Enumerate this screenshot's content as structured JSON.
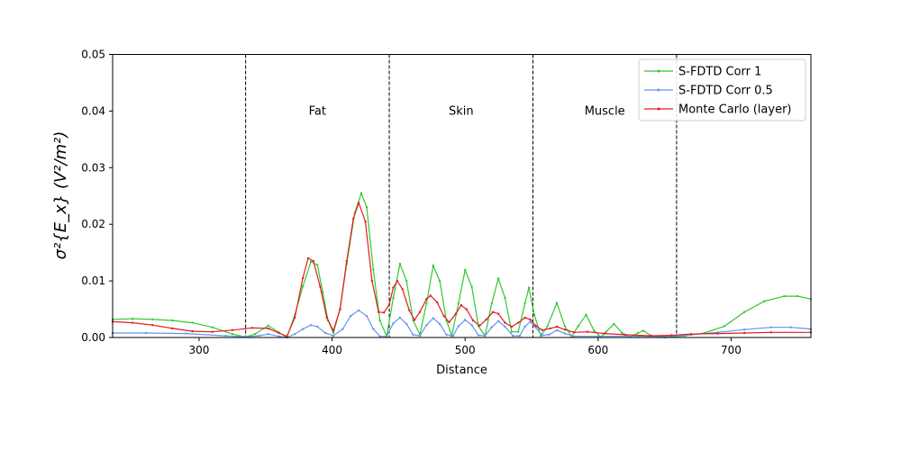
{
  "chart_data": {
    "type": "line",
    "title": "",
    "xlabel": "Distance",
    "ylabel": "σ²{E_x} (V²/m²)",
    "xlim": [
      235,
      760
    ],
    "ylim": [
      0,
      0.05
    ],
    "xticks": [
      300,
      400,
      500,
      600,
      700
    ],
    "yticks": [
      0.0,
      0.01,
      0.02,
      0.03,
      0.04,
      0.05
    ],
    "ytick_labels": [
      "0.00",
      "0.01",
      "0.02",
      "0.03",
      "0.04",
      "0.05"
    ],
    "grid": false,
    "legend_position": "top-right",
    "boundaries": [
      335,
      443,
      551,
      659
    ],
    "regions": [
      {
        "label": "Fat",
        "x": 389,
        "y": 0.04
      },
      {
        "label": "Skin",
        "x": 497,
        "y": 0.04
      },
      {
        "label": "Muscle",
        "x": 605,
        "y": 0.04
      }
    ],
    "series": [
      {
        "name": "S-FDTD Corr 1",
        "color": "#32c832",
        "points": [
          [
            235,
            0.0032
          ],
          [
            250,
            0.0033
          ],
          [
            265,
            0.0032
          ],
          [
            280,
            0.003
          ],
          [
            295,
            0.0026
          ],
          [
            310,
            0.0018
          ],
          [
            325,
            0.0006
          ],
          [
            335,
            0.0001
          ],
          [
            342,
            0.0006
          ],
          [
            352,
            0.0021
          ],
          [
            360,
            0.0009
          ],
          [
            366,
            0.0
          ],
          [
            372,
            0.004
          ],
          [
            378,
            0.009
          ],
          [
            384,
            0.0134
          ],
          [
            389,
            0.0128
          ],
          [
            393,
            0.008
          ],
          [
            397,
            0.003
          ],
          [
            401,
            0.0008
          ],
          [
            406,
            0.005
          ],
          [
            411,
            0.013
          ],
          [
            417,
            0.022
          ],
          [
            422,
            0.0255
          ],
          [
            426,
            0.023
          ],
          [
            431,
            0.012
          ],
          [
            436,
            0.003
          ],
          [
            441,
            0.0002
          ],
          [
            446,
            0.007
          ],
          [
            451,
            0.013
          ],
          [
            456,
            0.01
          ],
          [
            461,
            0.003
          ],
          [
            466,
            0.0005
          ],
          [
            471,
            0.006
          ],
          [
            476,
            0.0127
          ],
          [
            481,
            0.01
          ],
          [
            486,
            0.003
          ],
          [
            490,
            0.0003
          ],
          [
            495,
            0.006
          ],
          [
            500,
            0.0119
          ],
          [
            505,
            0.009
          ],
          [
            510,
            0.002
          ],
          [
            515,
            0.0003
          ],
          [
            520,
            0.006
          ],
          [
            525,
            0.0104
          ],
          [
            530,
            0.007
          ],
          [
            535,
            0.001
          ],
          [
            540,
            0.001
          ],
          [
            545,
            0.006
          ],
          [
            548,
            0.0088
          ],
          [
            552,
            0.004
          ],
          [
            557,
            0.0003
          ],
          [
            562,
            0.002
          ],
          [
            569,
            0.0061
          ],
          [
            575,
            0.002
          ],
          [
            580,
            0.0002
          ],
          [
            585,
            0.002
          ],
          [
            591,
            0.004
          ],
          [
            597,
            0.0012
          ],
          [
            602,
            0.0001
          ],
          [
            606,
            0.001
          ],
          [
            612,
            0.0024
          ],
          [
            618,
            0.0008
          ],
          [
            624,
            0.0001
          ],
          [
            630,
            0.0008
          ],
          [
            634,
            0.0012
          ],
          [
            640,
            0.0003
          ],
          [
            650,
            0.0
          ],
          [
            665,
            0.0003
          ],
          [
            680,
            0.0008
          ],
          [
            695,
            0.002
          ],
          [
            710,
            0.0045
          ],
          [
            725,
            0.0064
          ],
          [
            740,
            0.0073
          ],
          [
            750,
            0.0073
          ],
          [
            760,
            0.0068
          ]
        ]
      },
      {
        "name": "S-FDTD Corr 0.5",
        "color": "#6495ed",
        "points": [
          [
            235,
            0.0008
          ],
          [
            260,
            0.0008
          ],
          [
            290,
            0.0007
          ],
          [
            320,
            0.0003
          ],
          [
            335,
            0.0001
          ],
          [
            345,
            0.0003
          ],
          [
            352,
            0.0006
          ],
          [
            360,
            0.0002
          ],
          [
            366,
            0.0
          ],
          [
            372,
            0.0006
          ],
          [
            378,
            0.0015
          ],
          [
            384,
            0.0022
          ],
          [
            389,
            0.0019
          ],
          [
            395,
            0.0008
          ],
          [
            401,
            0.0003
          ],
          [
            408,
            0.0015
          ],
          [
            414,
            0.0038
          ],
          [
            420,
            0.0048
          ],
          [
            426,
            0.0038
          ],
          [
            431,
            0.0015
          ],
          [
            436,
            0.0002
          ],
          [
            441,
            0.0002
          ],
          [
            446,
            0.0025
          ],
          [
            451,
            0.0035
          ],
          [
            456,
            0.0024
          ],
          [
            461,
            0.0005
          ],
          [
            466,
            0.0003
          ],
          [
            471,
            0.0022
          ],
          [
            476,
            0.0034
          ],
          [
            481,
            0.0024
          ],
          [
            486,
            0.0005
          ],
          [
            491,
            0.0003
          ],
          [
            495,
            0.002
          ],
          [
            500,
            0.0031
          ],
          [
            505,
            0.0022
          ],
          [
            510,
            0.0004
          ],
          [
            515,
            0.0003
          ],
          [
            520,
            0.0018
          ],
          [
            525,
            0.0029
          ],
          [
            530,
            0.0019
          ],
          [
            536,
            0.0003
          ],
          [
            541,
            0.0003
          ],
          [
            545,
            0.0019
          ],
          [
            549,
            0.0028
          ],
          [
            553,
            0.0018
          ],
          [
            558,
            0.0004
          ],
          [
            563,
            0.0005
          ],
          [
            569,
            0.0013
          ],
          [
            575,
            0.0007
          ],
          [
            582,
            0.0002
          ],
          [
            600,
            0.0002
          ],
          [
            630,
            0.0002
          ],
          [
            655,
            0.0002
          ],
          [
            670,
            0.0005
          ],
          [
            690,
            0.0009
          ],
          [
            710,
            0.0014
          ],
          [
            730,
            0.0018
          ],
          [
            745,
            0.0018
          ],
          [
            760,
            0.0015
          ]
        ]
      },
      {
        "name": "Monte Carlo (layer)",
        "color": "#e31a1c",
        "points": [
          [
            235,
            0.0028
          ],
          [
            250,
            0.0026
          ],
          [
            265,
            0.0022
          ],
          [
            280,
            0.0016
          ],
          [
            295,
            0.0011
          ],
          [
            310,
            0.001
          ],
          [
            325,
            0.0013
          ],
          [
            340,
            0.0017
          ],
          [
            352,
            0.0016
          ],
          [
            360,
            0.0008
          ],
          [
            366,
            0.0002
          ],
          [
            372,
            0.0035
          ],
          [
            378,
            0.0105
          ],
          [
            382,
            0.014
          ],
          [
            386,
            0.0135
          ],
          [
            391,
            0.009
          ],
          [
            396,
            0.0035
          ],
          [
            401,
            0.0012
          ],
          [
            406,
            0.005
          ],
          [
            411,
            0.0135
          ],
          [
            416,
            0.021
          ],
          [
            420,
            0.0238
          ],
          [
            425,
            0.0205
          ],
          [
            430,
            0.01
          ],
          [
            435,
            0.0045
          ],
          [
            439,
            0.0044
          ],
          [
            443,
            0.0058
          ],
          [
            446,
            0.0088
          ],
          [
            449,
            0.01
          ],
          [
            453,
            0.0085
          ],
          [
            458,
            0.0048
          ],
          [
            462,
            0.0031
          ],
          [
            466,
            0.0045
          ],
          [
            471,
            0.0068
          ],
          [
            474,
            0.0074
          ],
          [
            479,
            0.0062
          ],
          [
            484,
            0.0038
          ],
          [
            488,
            0.0027
          ],
          [
            493,
            0.0042
          ],
          [
            497,
            0.0057
          ],
          [
            501,
            0.005
          ],
          [
            506,
            0.003
          ],
          [
            511,
            0.0021
          ],
          [
            516,
            0.0032
          ],
          [
            521,
            0.0045
          ],
          [
            525,
            0.0042
          ],
          [
            530,
            0.0026
          ],
          [
            535,
            0.0019
          ],
          [
            540,
            0.0026
          ],
          [
            545,
            0.0035
          ],
          [
            549,
            0.0032
          ],
          [
            553,
            0.0021
          ],
          [
            558,
            0.0013
          ],
          [
            564,
            0.0016
          ],
          [
            569,
            0.0019
          ],
          [
            575,
            0.0014
          ],
          [
            582,
            0.0009
          ],
          [
            592,
            0.001
          ],
          [
            605,
            0.0007
          ],
          [
            620,
            0.0005
          ],
          [
            640,
            0.0003
          ],
          [
            655,
            0.0004
          ],
          [
            670,
            0.0006
          ],
          [
            690,
            0.0007
          ],
          [
            710,
            0.0008
          ],
          [
            730,
            0.0009
          ],
          [
            760,
            0.0009
          ]
        ]
      }
    ]
  }
}
